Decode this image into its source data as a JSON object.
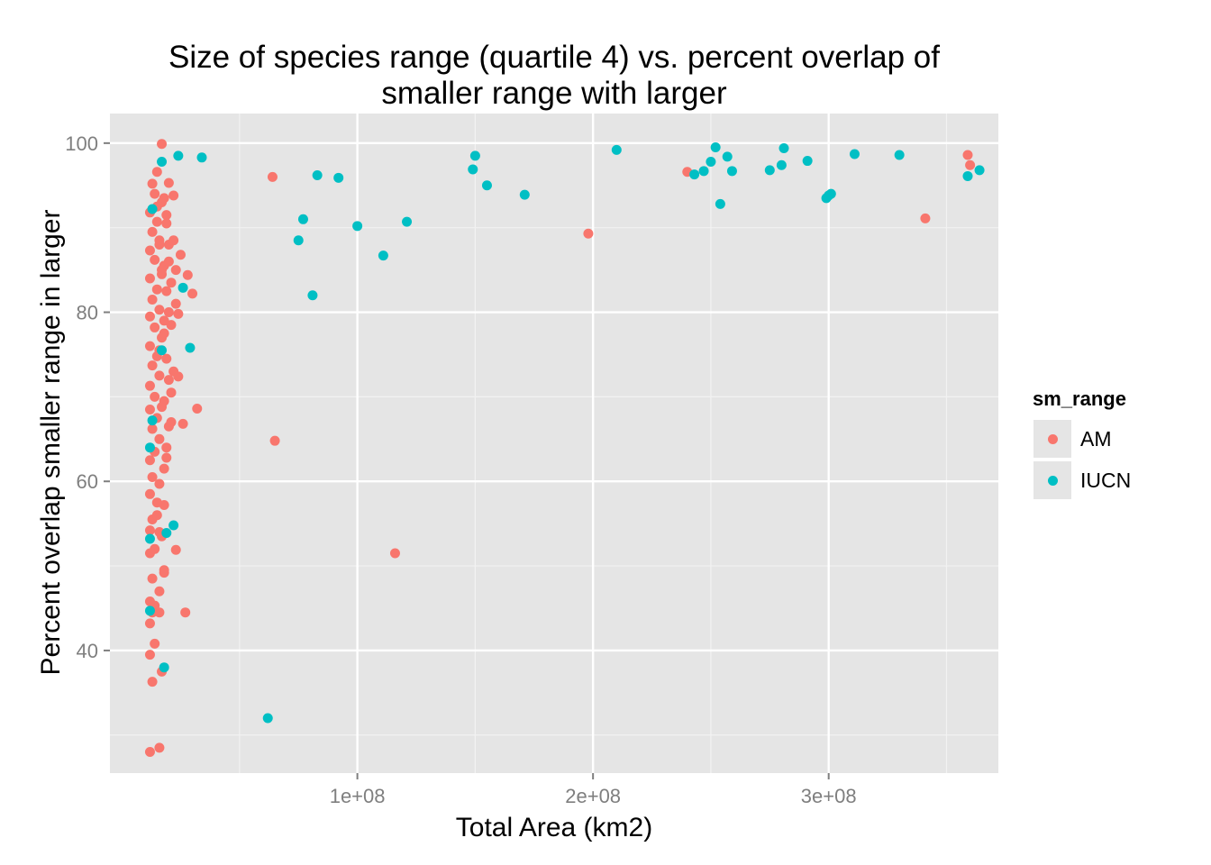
{
  "chart_data": {
    "type": "scatter",
    "title_lines": [
      "Size of species range (quartile 4) vs. percent overlap of",
      "smaller range with larger"
    ],
    "xlabel": "Total Area (km2)",
    "ylabel": "Percent overlap smaller range in larger",
    "xlim": [
      -5000000,
      372000000
    ],
    "ylim": [
      25.5,
      103.5
    ],
    "x_ticks": [
      {
        "value": 100000000,
        "label": "1e+08"
      },
      {
        "value": 200000000,
        "label": "2e+08"
      },
      {
        "value": 300000000,
        "label": "3e+08"
      }
    ],
    "y_ticks": [
      {
        "value": 40,
        "label": "40"
      },
      {
        "value": 60,
        "label": "60"
      },
      {
        "value": 80,
        "label": "80"
      },
      {
        "value": 100,
        "label": "100"
      }
    ],
    "x_minor": [
      50000000,
      150000000,
      250000000,
      350000000
    ],
    "y_minor": [
      30,
      50,
      70,
      90
    ],
    "grid": true,
    "background": "#e5e5e5",
    "legend": {
      "title": "sm_range",
      "position": "right"
    },
    "series": [
      {
        "name": "AM",
        "color": "#f8766d",
        "points": [
          [
            12000000,
            28.0
          ],
          [
            16000000,
            28.5
          ],
          [
            12000000,
            39.5
          ],
          [
            13000000,
            36.3
          ],
          [
            17000000,
            37.5
          ],
          [
            14000000,
            40.8
          ],
          [
            12000000,
            43.2
          ],
          [
            13000000,
            44.5
          ],
          [
            16000000,
            44.5
          ],
          [
            12000000,
            45.8
          ],
          [
            14000000,
            45.3
          ],
          [
            13000000,
            48.5
          ],
          [
            18000000,
            49.2
          ],
          [
            12000000,
            51.5
          ],
          [
            14000000,
            52.0
          ],
          [
            16000000,
            54.0
          ],
          [
            13000000,
            55.5
          ],
          [
            12000000,
            54.2
          ],
          [
            18000000,
            57.2
          ],
          [
            15000000,
            56.0
          ],
          [
            12000000,
            58.5
          ],
          [
            16000000,
            59.7
          ],
          [
            13000000,
            60.5
          ],
          [
            12000000,
            62.5
          ],
          [
            14000000,
            63.5
          ],
          [
            16000000,
            65.0
          ],
          [
            13000000,
            66.2
          ],
          [
            15000000,
            67.5
          ],
          [
            12000000,
            68.5
          ],
          [
            17000000,
            68.8
          ],
          [
            14000000,
            70.0
          ],
          [
            12000000,
            71.3
          ],
          [
            16000000,
            72.5
          ],
          [
            13000000,
            73.7
          ],
          [
            15000000,
            74.8
          ],
          [
            12000000,
            76.0
          ],
          [
            17000000,
            77.0
          ],
          [
            14000000,
            78.2
          ],
          [
            12000000,
            79.5
          ],
          [
            16000000,
            80.3
          ],
          [
            13000000,
            81.5
          ],
          [
            15000000,
            82.7
          ],
          [
            12000000,
            84.0
          ],
          [
            17000000,
            85.0
          ],
          [
            14000000,
            86.2
          ],
          [
            12000000,
            87.3
          ],
          [
            16000000,
            88.5
          ],
          [
            13000000,
            89.5
          ],
          [
            15000000,
            90.7
          ],
          [
            12000000,
            91.8
          ],
          [
            17000000,
            93.0
          ],
          [
            14000000,
            94.0
          ],
          [
            13000000,
            95.2
          ],
          [
            15000000,
            96.6
          ],
          [
            17000000,
            99.9
          ],
          [
            18000000,
            61.5
          ],
          [
            19000000,
            64.0
          ],
          [
            20000000,
            66.5
          ],
          [
            18000000,
            69.5
          ],
          [
            20000000,
            72.0
          ],
          [
            19000000,
            74.5
          ],
          [
            18000000,
            77.5
          ],
          [
            20000000,
            80.0
          ],
          [
            19000000,
            82.5
          ],
          [
            18000000,
            85.5
          ],
          [
            20000000,
            88.0
          ],
          [
            19000000,
            90.5
          ],
          [
            18000000,
            93.5
          ],
          [
            20000000,
            86.0
          ],
          [
            21000000,
            78.5
          ],
          [
            21000000,
            83.5
          ],
          [
            22000000,
            88.5
          ],
          [
            22000000,
            73.0
          ],
          [
            21000000,
            70.5
          ],
          [
            23000000,
            81.0
          ],
          [
            23000000,
            85.0
          ],
          [
            24000000,
            79.8
          ],
          [
            22000000,
            93.8
          ],
          [
            25000000,
            86.8
          ],
          [
            24000000,
            72.4
          ],
          [
            26000000,
            66.8
          ],
          [
            28000000,
            84.4
          ],
          [
            30000000,
            82.2
          ],
          [
            32000000,
            68.6
          ],
          [
            27000000,
            44.5
          ],
          [
            23000000,
            51.9
          ],
          [
            18000000,
            49.5
          ],
          [
            16000000,
            47.0
          ],
          [
            15000000,
            57.5
          ],
          [
            17000000,
            53.5
          ],
          [
            19000000,
            62.8
          ],
          [
            21000000,
            67.0
          ],
          [
            16000000,
            75.5
          ],
          [
            18000000,
            79.0
          ],
          [
            17000000,
            84.5
          ],
          [
            16000000,
            88.0
          ],
          [
            19000000,
            91.5
          ],
          [
            15000000,
            92.5
          ],
          [
            20000000,
            95.3
          ],
          [
            64000000,
            96.0
          ],
          [
            65000000,
            64.8
          ],
          [
            116000000,
            51.5
          ],
          [
            198000000,
            89.3
          ],
          [
            240000000,
            96.6
          ],
          [
            341000000,
            91.1
          ],
          [
            359000000,
            98.6
          ],
          [
            360000000,
            97.4
          ]
        ]
      },
      {
        "name": "IUCN",
        "color": "#00bfc4",
        "points": [
          [
            12000000,
            44.7
          ],
          [
            12000000,
            53.2
          ],
          [
            12000000,
            64.0
          ],
          [
            13000000,
            67.2
          ],
          [
            13000000,
            92.2
          ],
          [
            17000000,
            75.5
          ],
          [
            17000000,
            97.8
          ],
          [
            18000000,
            38.0
          ],
          [
            19000000,
            53.9
          ],
          [
            22000000,
            54.8
          ],
          [
            24000000,
            98.5
          ],
          [
            26000000,
            82.9
          ],
          [
            29000000,
            75.8
          ],
          [
            34000000,
            98.3
          ],
          [
            62000000,
            32.0
          ],
          [
            75000000,
            88.5
          ],
          [
            77000000,
            91.0
          ],
          [
            81000000,
            82.0
          ],
          [
            83000000,
            96.2
          ],
          [
            92000000,
            95.9
          ],
          [
            100000000,
            90.2
          ],
          [
            111000000,
            86.7
          ],
          [
            121000000,
            90.7
          ],
          [
            149000000,
            96.9
          ],
          [
            150000000,
            98.5
          ],
          [
            155000000,
            95.0
          ],
          [
            171000000,
            93.9
          ],
          [
            210000000,
            99.2
          ],
          [
            243000000,
            96.3
          ],
          [
            247000000,
            96.7
          ],
          [
            250000000,
            97.8
          ],
          [
            252000000,
            99.5
          ],
          [
            254000000,
            92.8
          ],
          [
            257000000,
            98.4
          ],
          [
            259000000,
            96.7
          ],
          [
            275000000,
            96.8
          ],
          [
            280000000,
            97.4
          ],
          [
            281000000,
            99.4
          ],
          [
            291000000,
            97.9
          ],
          [
            299000000,
            93.5
          ],
          [
            300000000,
            93.8
          ],
          [
            301000000,
            94.0
          ],
          [
            311000000,
            98.7
          ],
          [
            330000000,
            98.6
          ],
          [
            359000000,
            96.1
          ],
          [
            364000000,
            96.8
          ]
        ]
      }
    ]
  }
}
